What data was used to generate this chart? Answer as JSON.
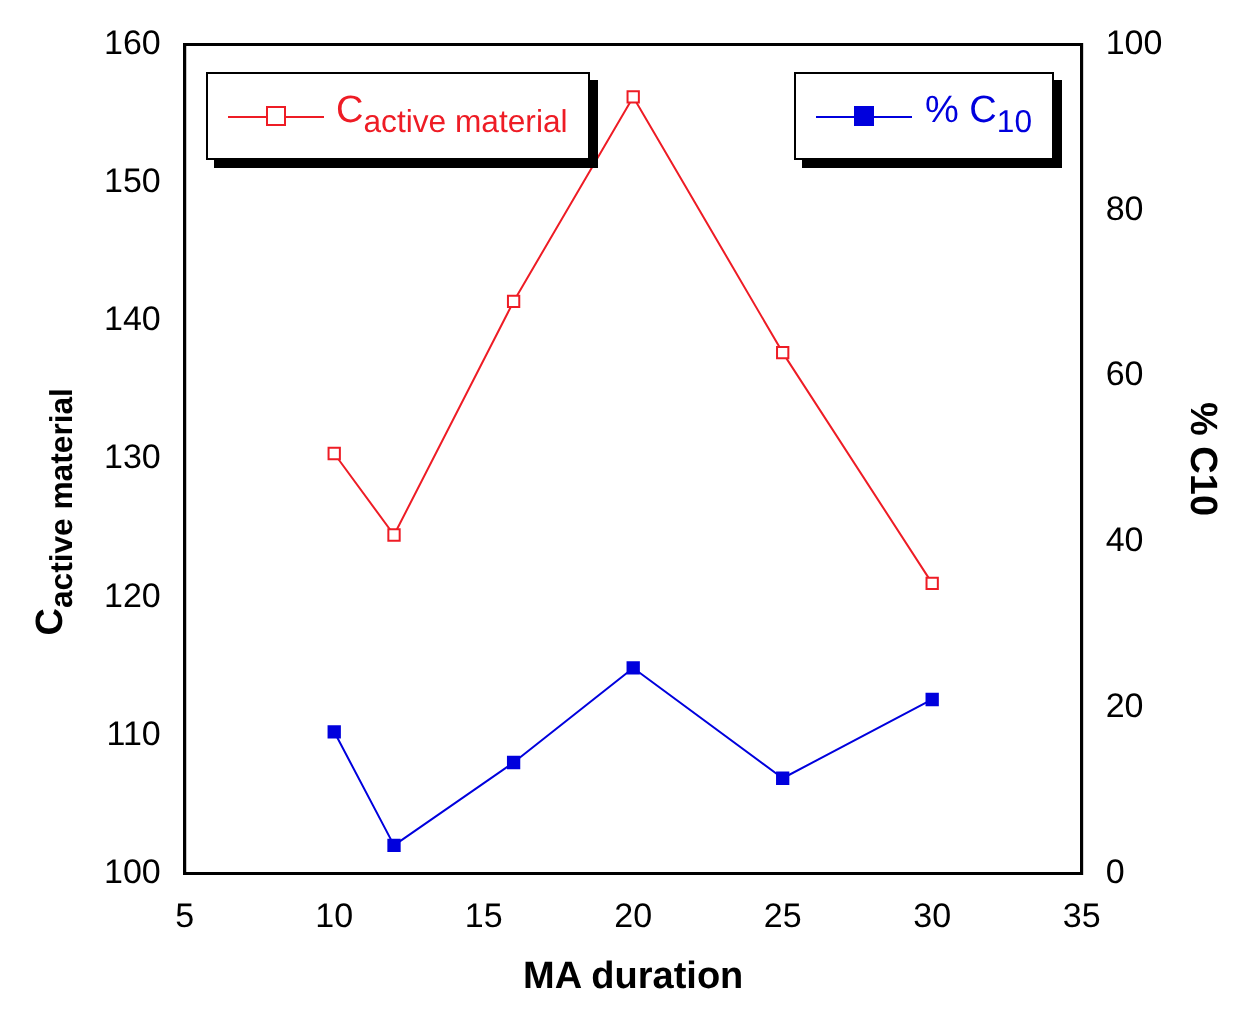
{
  "chart_data": {
    "type": "line",
    "xlabel": "MA duration",
    "ylabel": "C$_{active material}$",
    "y2label": "% C10",
    "x": [
      10,
      12,
      16,
      20,
      25,
      30
    ],
    "series": [
      {
        "name": "C$_{active material}$",
        "color": "#ee1c25",
        "values": [
          130.4,
          124.5,
          141.4,
          156.2,
          137.7,
          121.0
        ],
        "marker": "square"
      },
      {
        "name": "% C$_{10}$",
        "color": "#0000dd",
        "values": [
          17.1,
          3.4,
          13.4,
          24.8,
          11.5,
          21.0
        ],
        "axis": "y2",
        "marker": "square"
      }
    ],
    "xlim": [
      5,
      35
    ],
    "xticks": [
      5,
      10,
      15,
      20,
      25,
      30,
      35
    ],
    "ylim": [
      100,
      160
    ],
    "yticks": [
      100,
      110,
      120,
      130,
      140,
      150,
      160
    ],
    "y2lim": [
      0,
      100
    ],
    "y2ticks": [
      0,
      20,
      40,
      60,
      80,
      100
    ],
    "legend": "top",
    "grid": false,
    "line_style": "solid"
  }
}
